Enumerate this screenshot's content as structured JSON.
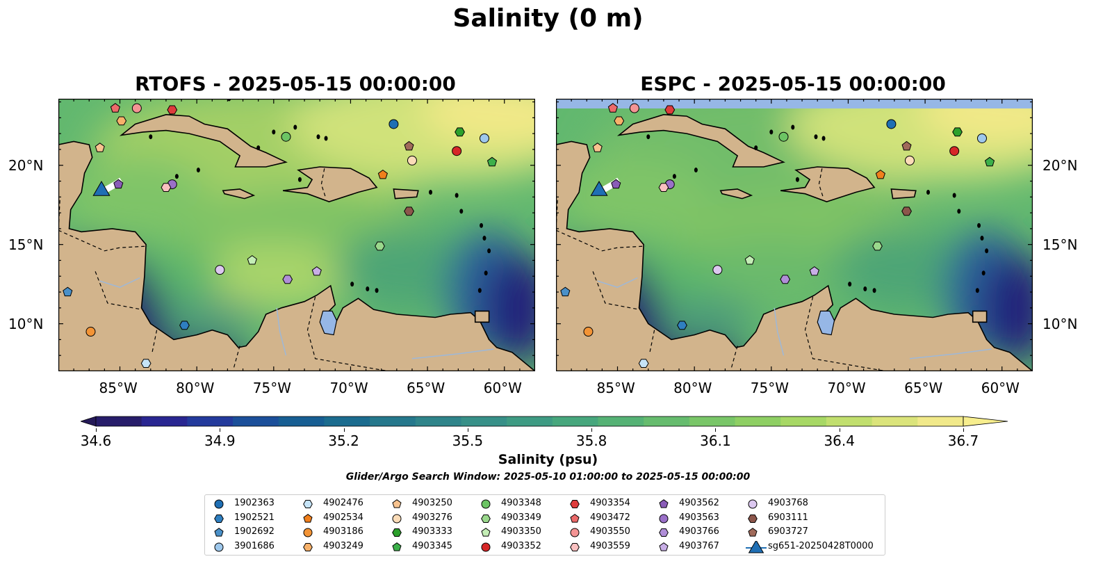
{
  "title": "Salinity (0 m)",
  "panels": [
    {
      "title": "RTOFS - 2025-05-15 00:00:00",
      "masked_top": false
    },
    {
      "title": "ESPC - 2025-05-15 00:00:00",
      "masked_top": true
    }
  ],
  "map": {
    "lon_range": [
      -89,
      -58
    ],
    "lat_range": [
      7,
      24.2
    ],
    "lon_ticks": [
      "85°W",
      "80°W",
      "75°W",
      "70°W",
      "65°W",
      "60°W"
    ],
    "lat_ticks": [
      "20°N",
      "15°N",
      "10°N"
    ],
    "land_color": "#d2b48c",
    "lake_color": "#96b7e6"
  },
  "colorbar": {
    "label": "Salinity (psu)",
    "ticks": [
      "34.6",
      "34.9",
      "35.2",
      "35.5",
      "35.8",
      "36.1",
      "36.4",
      "36.7"
    ],
    "range": [
      34.6,
      36.7
    ],
    "colormap": "haline"
  },
  "search_window": "Glider/Argo Search Window: 2025-05-10 01:00:00 to 2025-05-15 00:00:00",
  "legend": [
    {
      "id": "1902363",
      "shape": "circle",
      "color": "#1f6fb4"
    },
    {
      "id": "1902521",
      "shape": "hexagon",
      "color": "#2f7fc0"
    },
    {
      "id": "1902692",
      "shape": "pentagon",
      "color": "#4a90c8"
    },
    {
      "id": "3901686",
      "shape": "circle",
      "color": "#9ec8ec"
    },
    {
      "id": "4902476",
      "shape": "hexagon",
      "color": "#c6e4f8"
    },
    {
      "id": "4902534",
      "shape": "pentagon",
      "color": "#f07f1c"
    },
    {
      "id": "4903186",
      "shape": "circle",
      "color": "#f39436"
    },
    {
      "id": "4903249",
      "shape": "hexagon",
      "color": "#f7b16a"
    },
    {
      "id": "4903250",
      "shape": "pentagon",
      "color": "#f8c38f"
    },
    {
      "id": "4903276",
      "shape": "circle",
      "color": "#fbdcb8"
    },
    {
      "id": "4903333",
      "shape": "hexagon",
      "color": "#2ca02c"
    },
    {
      "id": "4903345",
      "shape": "pentagon",
      "color": "#3cb04a"
    },
    {
      "id": "4903348",
      "shape": "circle",
      "color": "#6cc464"
    },
    {
      "id": "4903349",
      "shape": "hexagon",
      "color": "#9ad88c"
    },
    {
      "id": "4903350",
      "shape": "pentagon",
      "color": "#c4eeb6"
    },
    {
      "id": "4903352",
      "shape": "circle",
      "color": "#d62728"
    },
    {
      "id": "4903354",
      "shape": "hexagon",
      "color": "#de3c3c"
    },
    {
      "id": "4903472",
      "shape": "pentagon",
      "color": "#ec6a6a"
    },
    {
      "id": "4903550",
      "shape": "circle",
      "color": "#f49494"
    },
    {
      "id": "4903559",
      "shape": "hexagon",
      "color": "#fac0c0"
    },
    {
      "id": "4903562",
      "shape": "pentagon",
      "color": "#8a5cb8"
    },
    {
      "id": "4903563",
      "shape": "circle",
      "color": "#9a70c8"
    },
    {
      "id": "4903766",
      "shape": "hexagon",
      "color": "#b08ed8"
    },
    {
      "id": "4903767",
      "shape": "pentagon",
      "color": "#c8aee6"
    },
    {
      "id": "4903768",
      "shape": "circle",
      "color": "#dcc8f0"
    },
    {
      "id": "6903111",
      "shape": "hexagon",
      "color": "#8c564b"
    },
    {
      "id": "6903727",
      "shape": "pentagon",
      "color": "#a06a5a"
    },
    {
      "id": "sg651-20250428T0000",
      "shape": "triangle",
      "color": "#1f6fb4"
    }
  ],
  "floats": [
    {
      "id": "4903472",
      "lon": -85.3,
      "lat": 23.6
    },
    {
      "id": "4903550",
      "lon": -83.9,
      "lat": 23.6
    },
    {
      "id": "4903354",
      "lon": -81.6,
      "lat": 23.5
    },
    {
      "id": "4903249",
      "lon": -84.9,
      "lat": 22.8
    },
    {
      "id": "4903250",
      "lon": -86.3,
      "lat": 21.1
    },
    {
      "id": "4903348",
      "lon": -74.2,
      "lat": 21.8
    },
    {
      "id": "1902363",
      "lon": -67.2,
      "lat": 22.6
    },
    {
      "id": "4903333",
      "lon": -62.9,
      "lat": 22.1
    },
    {
      "id": "3901686",
      "lon": -61.3,
      "lat": 21.7
    },
    {
      "id": "6903727",
      "lon": -66.2,
      "lat": 21.2
    },
    {
      "id": "4903352",
      "lon": -63.1,
      "lat": 20.9
    },
    {
      "id": "4903276",
      "lon": -66.0,
      "lat": 20.3
    },
    {
      "id": "4903345",
      "lon": -60.8,
      "lat": 20.2
    },
    {
      "id": "4902534",
      "lon": -67.9,
      "lat": 19.4
    },
    {
      "id": "4903562",
      "lon": -85.1,
      "lat": 18.8
    },
    {
      "id": "4903563",
      "lon": -81.6,
      "lat": 18.8
    },
    {
      "id": "4903559",
      "lon": -82.0,
      "lat": 18.6
    },
    {
      "id": "6903111",
      "lon": -66.2,
      "lat": 17.1
    },
    {
      "id": "4903349",
      "lon": -68.1,
      "lat": 14.9
    },
    {
      "id": "4903350",
      "lon": -76.4,
      "lat": 14.0
    },
    {
      "id": "4903768",
      "lon": -78.5,
      "lat": 13.4
    },
    {
      "id": "4903767",
      "lon": -72.2,
      "lat": 13.3
    },
    {
      "id": "4903766",
      "lon": -74.1,
      "lat": 12.8
    },
    {
      "id": "1902692",
      "lon": -88.4,
      "lat": 12.0
    },
    {
      "id": "1902521",
      "lon": -80.8,
      "lat": 9.9
    },
    {
      "id": "4903186",
      "lon": -86.9,
      "lat": 9.5
    },
    {
      "id": "4902476",
      "lon": -83.3,
      "lat": 7.5
    }
  ],
  "glider": {
    "id": "sg651-20250428T0000",
    "lon": -86.2,
    "lat": 18.3
  }
}
